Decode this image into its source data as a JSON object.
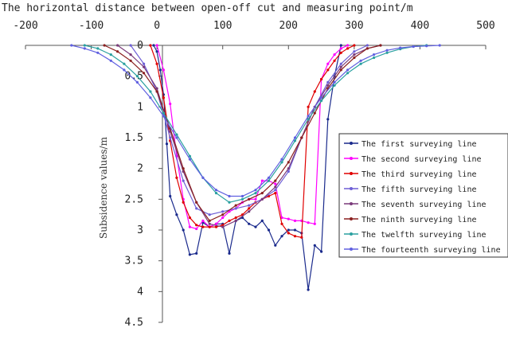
{
  "chart_data": {
    "type": "line",
    "title": "The horizontal distance between open-off cut and measuring point/m",
    "xlabel": "",
    "ylabel": "Subsidence values/m",
    "xlim": [
      -200,
      500
    ],
    "ylim": [
      0,
      4.5
    ],
    "y_inverted": true,
    "x_axis_position": "top",
    "x_ticks": [
      -200,
      -100,
      0,
      100,
      200,
      300,
      400,
      500
    ],
    "y_ticks": [
      0,
      0.5,
      1,
      1.5,
      2,
      2.5,
      3,
      3.5,
      4,
      4.5
    ],
    "y_tick_labels": [
      "0",
      "0.5",
      "1",
      "1.5",
      "2",
      "2.5",
      "3",
      "3.5",
      "4",
      "4.5"
    ],
    "grid": false,
    "legend_position": "right",
    "series": [
      {
        "name": "The first surveying line",
        "color": "#1a2a8c",
        "x": [
          -5,
          0,
          5,
          10,
          15,
          20,
          30,
          40,
          50,
          60,
          70,
          80,
          90,
          100,
          110,
          120,
          130,
          140,
          150,
          160,
          170,
          180,
          190,
          200,
          210,
          220,
          230,
          240,
          250,
          260,
          270,
          280
        ],
        "y": [
          0,
          0.1,
          0.4,
          0.8,
          1.6,
          2.45,
          2.75,
          3.0,
          3.4,
          3.38,
          2.88,
          2.95,
          2.9,
          2.9,
          3.38,
          2.85,
          2.8,
          2.9,
          2.95,
          2.85,
          3.0,
          3.25,
          3.1,
          3.0,
          3.0,
          3.05,
          3.97,
          3.25,
          3.35,
          1.2,
          0.5,
          0
        ]
      },
      {
        "name": "The second surveying line",
        "color": "#ff00ff",
        "x": [
          0,
          10,
          20,
          30,
          40,
          50,
          60,
          70,
          80,
          90,
          100,
          110,
          120,
          130,
          140,
          150,
          160,
          170,
          180,
          190,
          200,
          210,
          220,
          230,
          240,
          250,
          260,
          270,
          280,
          290
        ],
        "y": [
          0,
          0.4,
          0.95,
          1.8,
          2.5,
          2.95,
          2.98,
          2.85,
          2.95,
          2.9,
          2.8,
          2.7,
          2.65,
          2.55,
          2.5,
          2.5,
          2.2,
          2.2,
          2.25,
          2.8,
          2.82,
          2.85,
          2.85,
          2.88,
          2.9,
          0.55,
          0.3,
          0.15,
          0.05,
          0
        ]
      },
      {
        "name": "The third surveying line",
        "color": "#e00000",
        "x": [
          -10,
          0,
          10,
          20,
          30,
          40,
          50,
          60,
          70,
          80,
          90,
          100,
          110,
          120,
          130,
          140,
          150,
          160,
          170,
          180,
          190,
          200,
          210,
          220,
          230,
          240,
          250,
          260,
          270,
          280,
          290,
          300
        ],
        "y": [
          0,
          0.3,
          0.85,
          1.55,
          2.15,
          2.55,
          2.8,
          2.92,
          2.95,
          2.95,
          2.95,
          2.92,
          2.85,
          2.8,
          2.75,
          2.65,
          2.55,
          2.5,
          2.45,
          2.4,
          2.9,
          3.05,
          3.1,
          3.12,
          1.0,
          0.75,
          0.55,
          0.4,
          0.25,
          0.12,
          0.05,
          0
        ]
      },
      {
        "name": "The fifth surveying line",
        "color": "#6e5fd6",
        "x": [
          -40,
          -20,
          0,
          20,
          40,
          60,
          80,
          100,
          120,
          140,
          160,
          180,
          200,
          220,
          240,
          260,
          280,
          300,
          320
        ],
        "y": [
          0,
          0.3,
          0.75,
          1.5,
          2.2,
          2.65,
          2.75,
          2.7,
          2.65,
          2.6,
          2.5,
          2.35,
          2.05,
          1.5,
          1.0,
          0.6,
          0.3,
          0.1,
          0
        ]
      },
      {
        "name": "The seventh surveying line",
        "color": "#7a3a7a",
        "x": [
          -60,
          -40,
          -20,
          0,
          20,
          40,
          60,
          80,
          100,
          120,
          140,
          160,
          180,
          200,
          220,
          240,
          260,
          280,
          300,
          320,
          340
        ],
        "y": [
          0,
          0.15,
          0.35,
          0.7,
          1.4,
          2.05,
          2.55,
          2.9,
          2.95,
          2.85,
          2.7,
          2.5,
          2.3,
          2.0,
          1.5,
          1.0,
          0.65,
          0.35,
          0.15,
          0.05,
          0
        ]
      },
      {
        "name": "The ninth surveying line",
        "color": "#8b2020",
        "x": [
          -80,
          -60,
          -40,
          -20,
          0,
          20,
          40,
          60,
          80,
          100,
          120,
          140,
          160,
          180,
          200,
          220,
          240,
          260,
          280,
          300,
          320,
          340
        ],
        "y": [
          0,
          0.1,
          0.25,
          0.45,
          0.75,
          1.35,
          2.0,
          2.55,
          2.85,
          2.75,
          2.6,
          2.5,
          2.4,
          2.2,
          1.9,
          1.5,
          1.1,
          0.7,
          0.4,
          0.2,
          0.05,
          0
        ]
      },
      {
        "name": "The twelfth surveying line",
        "color": "#2aa0a0",
        "x": [
          -110,
          -90,
          -70,
          -50,
          -30,
          -10,
          10,
          30,
          50,
          70,
          90,
          110,
          130,
          150,
          170,
          190,
          210,
          230,
          250,
          270,
          290,
          310,
          330,
          350,
          370,
          390,
          410
        ],
        "y": [
          0,
          0.05,
          0.15,
          0.3,
          0.5,
          0.75,
          1.1,
          1.45,
          1.8,
          2.15,
          2.4,
          2.55,
          2.5,
          2.4,
          2.2,
          1.9,
          1.55,
          1.2,
          0.9,
          0.65,
          0.45,
          0.3,
          0.2,
          0.12,
          0.06,
          0.02,
          0
        ]
      },
      {
        "name": "The fourteenth surveying line",
        "color": "#6060e0",
        "x": [
          -130,
          -110,
          -90,
          -70,
          -50,
          -30,
          -10,
          10,
          30,
          50,
          70,
          90,
          110,
          130,
          150,
          170,
          190,
          210,
          230,
          250,
          270,
          290,
          310,
          330,
          350,
          370,
          390,
          410,
          430
        ],
        "y": [
          0,
          0.05,
          0.12,
          0.25,
          0.4,
          0.6,
          0.85,
          1.15,
          1.5,
          1.85,
          2.15,
          2.35,
          2.45,
          2.45,
          2.35,
          2.15,
          1.85,
          1.5,
          1.15,
          0.85,
          0.6,
          0.4,
          0.25,
          0.15,
          0.08,
          0.04,
          0.02,
          0.01,
          0
        ]
      }
    ]
  }
}
